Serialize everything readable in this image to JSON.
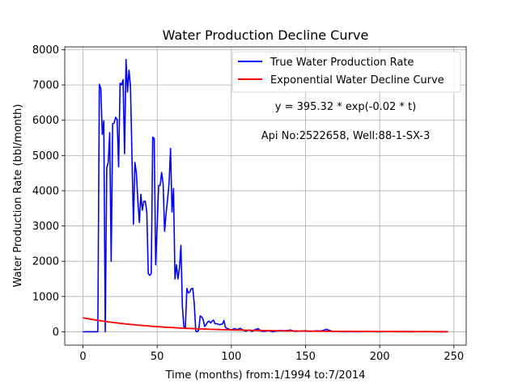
{
  "chart_data": {
    "type": "line",
    "title": "Water Production Decline Curve",
    "xlabel": "Time (months) from:1/1994 to:7/2014",
    "ylabel": "Water Production Rate (bbl/month)",
    "xlim": [
      -12.3,
      258.3
    ],
    "ylim": [
      -380,
      8080
    ],
    "x_ticks": [
      0,
      50,
      100,
      150,
      200,
      250
    ],
    "y_ticks": [
      0,
      1000,
      2000,
      3000,
      4000,
      5000,
      6000,
      7000,
      8000
    ],
    "grid": true,
    "legend_position": "top-right",
    "series": [
      {
        "name": "True Water Production Rate",
        "color": "#0000ff",
        "points": [
          [
            0,
            0
          ],
          [
            5,
            0
          ],
          [
            10,
            0
          ],
          [
            11,
            7020
          ],
          [
            12,
            6900
          ],
          [
            13,
            5600
          ],
          [
            14,
            5980
          ],
          [
            15,
            0
          ],
          [
            16,
            4650
          ],
          [
            17,
            4800
          ],
          [
            18,
            5650
          ],
          [
            19,
            2000
          ],
          [
            20,
            5900
          ],
          [
            21,
            5920
          ],
          [
            22,
            6080
          ],
          [
            23,
            6020
          ],
          [
            24,
            4680
          ],
          [
            25,
            7050
          ],
          [
            26,
            7000
          ],
          [
            27,
            7150
          ],
          [
            28,
            5050
          ],
          [
            29,
            7720
          ],
          [
            30,
            6800
          ],
          [
            31,
            7420
          ],
          [
            32,
            6950
          ],
          [
            33,
            5000
          ],
          [
            34,
            3050
          ],
          [
            35,
            4800
          ],
          [
            36,
            4500
          ],
          [
            37,
            3700
          ],
          [
            38,
            3100
          ],
          [
            39,
            3900
          ],
          [
            40,
            3450
          ],
          [
            41,
            3700
          ],
          [
            42,
            3700
          ],
          [
            43,
            3400
          ],
          [
            44,
            1650
          ],
          [
            45,
            1600
          ],
          [
            46,
            1650
          ],
          [
            47,
            5520
          ],
          [
            48,
            5480
          ],
          [
            49,
            1900
          ],
          [
            50,
            3000
          ],
          [
            51,
            4150
          ],
          [
            52,
            4150
          ],
          [
            53,
            4520
          ],
          [
            54,
            4200
          ],
          [
            55,
            2850
          ],
          [
            56,
            3350
          ],
          [
            57,
            3750
          ],
          [
            58,
            4200
          ],
          [
            59,
            5200
          ],
          [
            60,
            3400
          ],
          [
            61,
            4060
          ],
          [
            62,
            1500
          ],
          [
            63,
            1900
          ],
          [
            64,
            1500
          ],
          [
            65,
            1800
          ],
          [
            66,
            2450
          ],
          [
            67,
            700
          ],
          [
            68,
            150
          ],
          [
            69,
            100
          ],
          [
            70,
            1230
          ],
          [
            71,
            1100
          ],
          [
            72,
            1130
          ],
          [
            73,
            1220
          ],
          [
            74,
            1230
          ],
          [
            75,
            800
          ],
          [
            76,
            20
          ],
          [
            77,
            0
          ],
          [
            78,
            50
          ],
          [
            79,
            450
          ],
          [
            80,
            420
          ],
          [
            81,
            350
          ],
          [
            82,
            150
          ],
          [
            83,
            200
          ],
          [
            84,
            280
          ],
          [
            85,
            300
          ],
          [
            86,
            250
          ],
          [
            87,
            300
          ],
          [
            88,
            330
          ],
          [
            89,
            230
          ],
          [
            90,
            230
          ],
          [
            92,
            200
          ],
          [
            94,
            220
          ],
          [
            95,
            320
          ],
          [
            96,
            120
          ],
          [
            98,
            80
          ],
          [
            100,
            50
          ],
          [
            102,
            90
          ],
          [
            104,
            60
          ],
          [
            106,
            100
          ],
          [
            108,
            40
          ],
          [
            110,
            20
          ],
          [
            112,
            50
          ],
          [
            114,
            10
          ],
          [
            116,
            60
          ],
          [
            118,
            90
          ],
          [
            120,
            20
          ],
          [
            122,
            10
          ],
          [
            125,
            30
          ],
          [
            128,
            0
          ],
          [
            130,
            20
          ],
          [
            133,
            40
          ],
          [
            136,
            30
          ],
          [
            140,
            50
          ],
          [
            143,
            10
          ],
          [
            146,
            20
          ],
          [
            150,
            30
          ],
          [
            153,
            10
          ],
          [
            156,
            20
          ],
          [
            158,
            30
          ],
          [
            160,
            20
          ],
          [
            162,
            40
          ],
          [
            164,
            70
          ],
          [
            166,
            40
          ],
          [
            168,
            10
          ],
          [
            172,
            5
          ],
          [
            176,
            0
          ],
          [
            180,
            5
          ],
          [
            185,
            0
          ],
          [
            190,
            5
          ],
          [
            200,
            0
          ],
          [
            210,
            5
          ],
          [
            220,
            0
          ],
          [
            230,
            5
          ],
          [
            240,
            0
          ],
          [
            246,
            0
          ]
        ]
      },
      {
        "name": "Exponential Water Decline Curve",
        "color": "#ff0000",
        "model": {
          "a": 395.32,
          "b": -0.02,
          "x_start": 0,
          "x_end": 246
        }
      }
    ],
    "annotations": [
      "y = 395.32 * exp(-0.02 * t)",
      "Api No:2522658, Well:88-1-SX-3"
    ]
  }
}
